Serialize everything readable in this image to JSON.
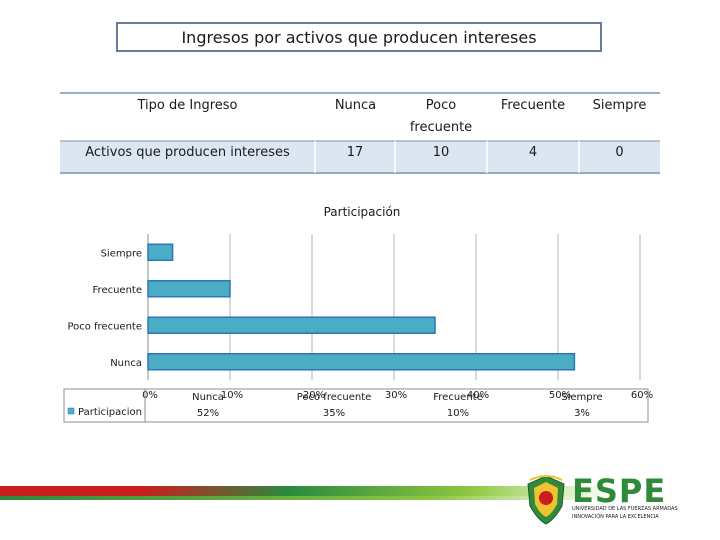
{
  "title": "Ingresos por activos que producen intereses",
  "table": {
    "headers": [
      "Tipo de Ingreso",
      "Nunca",
      "Poco\nfrecuente",
      "Frecuente",
      "Siempre"
    ],
    "row_label": "Activos que producen intereses",
    "values": [
      "17",
      "10",
      "4",
      "0"
    ]
  },
  "chart_data": {
    "type": "bar",
    "orientation": "horizontal",
    "title": "Participación",
    "categories": [
      "Siempre",
      "Frecuente",
      "Poco frecuente",
      "Nunca"
    ],
    "series": [
      {
        "name": "Participacion",
        "values": [
          3,
          10,
          35,
          52
        ]
      }
    ],
    "xlim": [
      0,
      60
    ],
    "x_ticks": [
      "0%",
      "10%",
      "20%",
      "30%",
      "40%",
      "50%",
      "60%"
    ],
    "grid": true,
    "legend": "bottom-left",
    "table_header": [
      "Nunca",
      "Poco frecuente",
      "Frecuente",
      "Siempre"
    ],
    "table_values": [
      "52%",
      "35%",
      "10%",
      "3%"
    ]
  },
  "logo": {
    "name": "ESPE",
    "line1": "UNIVERSIDAD DE LAS FUERZAS ARMADAS",
    "line2": "INNOVACIÓN PARA LA EXCELENCIA"
  },
  "colors": {
    "bar": "#4bacc6",
    "bar_border": "#2e75b6",
    "accent": "#2f8a3a"
  }
}
